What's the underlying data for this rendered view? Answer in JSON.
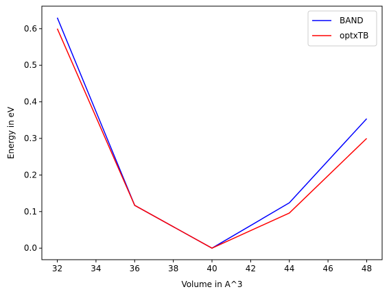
{
  "chart_data": {
    "type": "line",
    "title": "",
    "xlabel": "Volume in A^3",
    "ylabel": "Energy in eV",
    "xlim": [
      31.2,
      48.8
    ],
    "ylim": [
      -0.0315,
      0.6615
    ],
    "xticks": [
      32,
      34,
      36,
      38,
      40,
      42,
      44,
      46,
      48
    ],
    "yticks": [
      0.0,
      0.1,
      0.2,
      0.3,
      0.4,
      0.5,
      0.6
    ],
    "xtick_labels": [
      "32",
      "34",
      "36",
      "38",
      "40",
      "42",
      "44",
      "46",
      "48"
    ],
    "ytick_labels": [
      "0.0",
      "0.1",
      "0.2",
      "0.3",
      "0.4",
      "0.5",
      "0.6"
    ],
    "grid": false,
    "legend_position": "top-right",
    "series": [
      {
        "name": "BAND",
        "color": "#0000ff",
        "x": [
          32,
          36,
          40,
          44,
          48
        ],
        "y": [
          0.63,
          0.117,
          0.0,
          0.124,
          0.354
        ]
      },
      {
        "name": "optxTB",
        "color": "#ff0000",
        "x": [
          32,
          36,
          40,
          44,
          48
        ],
        "y": [
          0.6,
          0.117,
          0.0,
          0.096,
          0.3
        ]
      }
    ]
  }
}
